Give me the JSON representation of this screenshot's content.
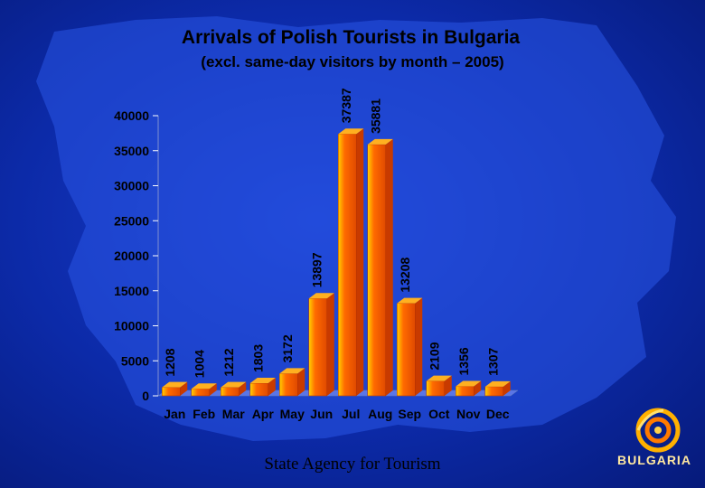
{
  "title": "Arrivals of Polish Tourists in Bulgaria",
  "subtitle": "(excl. same-day visitors by month – 2005)",
  "footer": "State Agency for Tourism",
  "logo_text": "BULGARIA",
  "colors": {
    "background": "#0c2aa8",
    "map_fill": "#2a55e6",
    "bar_front": "#ff6a00",
    "bar_light": "#ffd000",
    "bar_top": "#ffb020",
    "bar_side": "#c83a00",
    "text": "#000000"
  },
  "chart_data": {
    "type": "bar",
    "title": "Arrivals of Polish Tourists in Bulgaria",
    "subtitle": "(excl. same-day visitors by month – 2005)",
    "categories": [
      "Jan",
      "Feb",
      "Mar",
      "Apr",
      "May",
      "Jun",
      "Jul",
      "Aug",
      "Sep",
      "Oct",
      "Nov",
      "Dec"
    ],
    "values": [
      1208,
      1004,
      1212,
      1803,
      3172,
      13897,
      37387,
      35881,
      13208,
      2109,
      1356,
      1307
    ],
    "labels": [
      "1208",
      "1004",
      "1212",
      "1803",
      "3172",
      "13897",
      "37387",
      "35881",
      "13208",
      "2109",
      "1356",
      "1307"
    ],
    "ylim": [
      0,
      40000
    ],
    "yticks": [
      0,
      5000,
      10000,
      15000,
      20000,
      25000,
      30000,
      35000,
      40000
    ],
    "ytick_labels": [
      "0",
      "5000",
      "10000",
      "15000",
      "20000",
      "25000",
      "30000",
      "35000",
      "40000"
    ],
    "grid": false,
    "legend": "none",
    "xlabel": "",
    "ylabel": ""
  }
}
